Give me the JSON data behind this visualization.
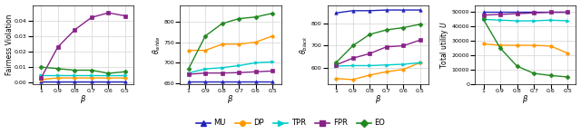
{
  "beta": [
    1,
    0.9,
    0.8,
    0.7,
    0.6,
    0.5
  ],
  "colors": {
    "MU": "#2222bb",
    "DP": "#ff9900",
    "TPR": "#00cccc",
    "FPR": "#882288",
    "EO": "#228822"
  },
  "markers": {
    "MU": "^",
    "DP": "o",
    "TPR": ">",
    "FPR": "s",
    "EO": "D"
  },
  "plot1": {
    "ylabel": "Fairness Violation",
    "MU": [
      0.0005,
      0.0005,
      0.0005,
      0.0005,
      0.0005,
      0.0005
    ],
    "DP": [
      0.002,
      0.003,
      0.003,
      0.003,
      0.003,
      0.003
    ],
    "TPR": [
      0.005,
      0.005,
      0.005,
      0.005,
      0.005,
      0.005
    ],
    "FPR": [
      0.003,
      0.023,
      0.034,
      0.042,
      0.045,
      0.043
    ],
    "EO": [
      0.01,
      0.009,
      0.008,
      0.008,
      0.006,
      0.007
    ],
    "ylim": [
      -0.001,
      0.05
    ],
    "yticks": [
      0.0,
      0.01,
      0.02,
      0.03,
      0.04
    ]
  },
  "plot2": {
    "ylabel": "$\\theta_{white}$",
    "MU": [
      655,
      655,
      655,
      655,
      655,
      655
    ],
    "DP": [
      730,
      730,
      745,
      745,
      750,
      765
    ],
    "TPR": [
      675,
      685,
      688,
      693,
      700,
      702
    ],
    "FPR": [
      672,
      675,
      675,
      676,
      678,
      680
    ],
    "EO": [
      685,
      765,
      795,
      807,
      811,
      820
    ],
    "ylim": [
      648,
      840
    ],
    "yticks": [
      650,
      700,
      750,
      800
    ]
  },
  "plot3": {
    "ylabel": "$\\theta_{black}$",
    "MU": [
      845,
      855,
      855,
      858,
      858,
      858
    ],
    "DP": [
      555,
      550,
      570,
      585,
      595,
      625
    ],
    "TPR": [
      610,
      612,
      612,
      615,
      618,
      625
    ],
    "FPR": [
      615,
      645,
      665,
      695,
      700,
      725
    ],
    "EO": [
      625,
      700,
      750,
      770,
      780,
      795
    ],
    "ylim": [
      530,
      880
    ],
    "yticks": [
      600,
      700,
      800
    ]
  },
  "plot4": {
    "ylabel": "Total utility $U$",
    "MU": [
      50500,
      50500,
      50500,
      50500,
      50500,
      50500
    ],
    "DP": [
      28000,
      27000,
      27000,
      27000,
      26500,
      21500
    ],
    "TPR": [
      45000,
      44500,
      44000,
      44000,
      44500,
      44000
    ],
    "FPR": [
      48000,
      48500,
      49000,
      49500,
      50000,
      50000
    ],
    "EO": [
      45000,
      25000,
      12500,
      7500,
      6000,
      5000
    ],
    "ylim": [
      0,
      55000
    ],
    "yticks": [
      0,
      10000,
      20000,
      30000,
      40000,
      50000
    ]
  }
}
